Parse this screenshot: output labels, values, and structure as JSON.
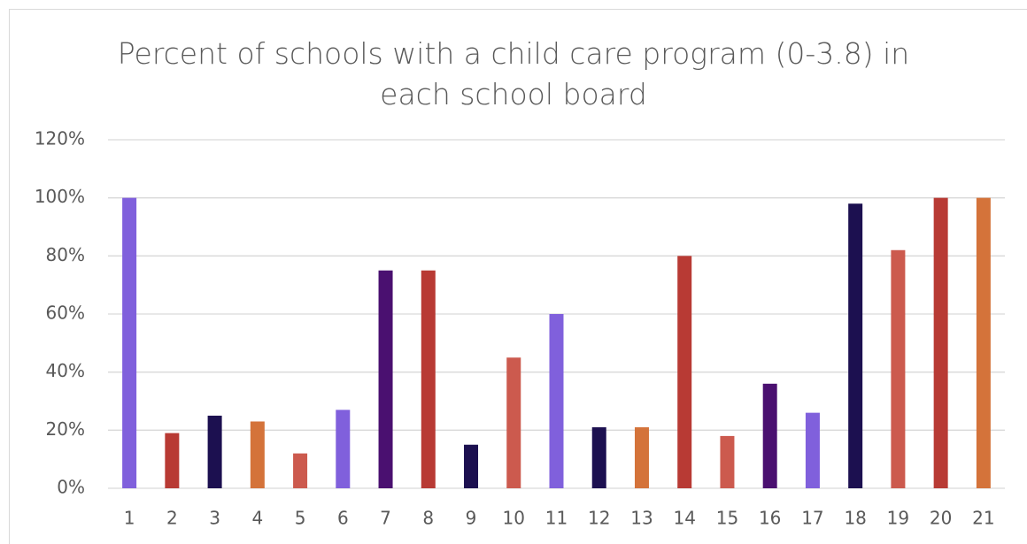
{
  "chart_data": {
    "type": "bar",
    "title": "Percent of schools with a child care program (0-3.8) in each school board",
    "categories": [
      "1",
      "2",
      "3",
      "4",
      "5",
      "6",
      "7",
      "8",
      "9",
      "10",
      "11",
      "12",
      "13",
      "14",
      "15",
      "16",
      "17",
      "18",
      "19",
      "20",
      "21"
    ],
    "values": [
      100,
      19,
      25,
      23,
      12,
      27,
      75,
      75,
      15,
      45,
      60,
      21,
      21,
      80,
      18,
      36,
      26,
      98,
      82,
      100,
      100
    ],
    "colors": [
      "#8060dc",
      "#b83a34",
      "#1c1050",
      "#d4733a",
      "#cc5a4e",
      "#8060dc",
      "#4a1070",
      "#b83a34",
      "#1c1050",
      "#cc5a4e",
      "#8060dc",
      "#1c1050",
      "#d4733a",
      "#b83a34",
      "#cc5a4e",
      "#4a1070",
      "#8060dc",
      "#1c1050",
      "#cc5a4e",
      "#b83a34",
      "#d4733a"
    ],
    "ylim": [
      0,
      120
    ],
    "yticks": [
      {
        "value": 0,
        "label": "0%"
      },
      {
        "value": 20,
        "label": "20%"
      },
      {
        "value": 40,
        "label": "40%"
      },
      {
        "value": 60,
        "label": "60%"
      },
      {
        "value": 80,
        "label": "80%"
      },
      {
        "value": 100,
        "label": "100%"
      },
      {
        "value": 120,
        "label": "120%"
      }
    ],
    "grid": true
  }
}
